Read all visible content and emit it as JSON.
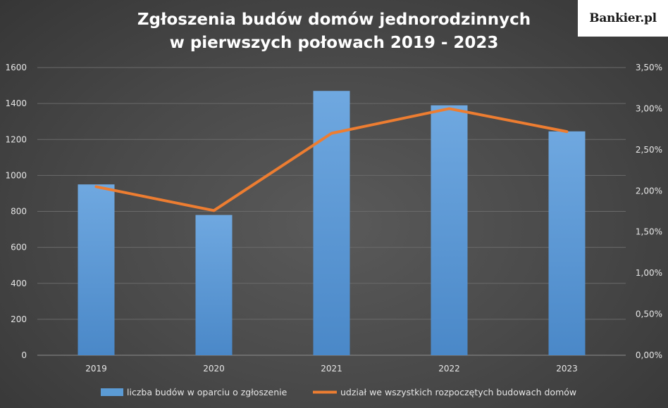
{
  "logo": {
    "text": "Bankier.pl"
  },
  "chart_data": {
    "type": "bar",
    "title": "Zgłoszenia budów domów jednorodzinnych",
    "title_line2": "w pierwszych połowach 2019 - 2023",
    "categories": [
      "2019",
      "2020",
      "2021",
      "2022",
      "2023"
    ],
    "series": [
      {
        "name": "liczba budów w oparciu o zgłoszenie",
        "type": "bar",
        "axis": "left",
        "color": "#5b9bd5",
        "values": [
          950,
          780,
          1470,
          1390,
          1245
        ]
      },
      {
        "name": "udział we wszystkich rozpoczętych budowach domów",
        "type": "line",
        "axis": "right",
        "color": "#ed7d31",
        "values": [
          2.05,
          1.76,
          2.7,
          3.0,
          2.72
        ]
      }
    ],
    "ylim": [
      0,
      1600
    ],
    "yticks": [
      "0",
      "200",
      "400",
      "600",
      "800",
      "1000",
      "1200",
      "1400",
      "1600"
    ],
    "y2lim": [
      0,
      3.5
    ],
    "y2ticks": [
      "0,00%",
      "0,50%",
      "1,00%",
      "1,50%",
      "2,00%",
      "2,50%",
      "3,00%",
      "3,50%"
    ],
    "grid": true,
    "legend_position": "bottom"
  }
}
